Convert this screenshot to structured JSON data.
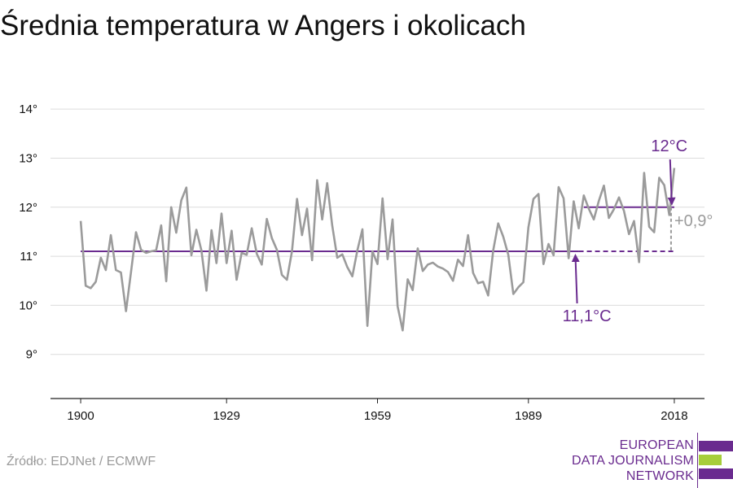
{
  "title": "Średnia temperatura w Angers i okolicach",
  "source": "Źródło: EDJNet / ECMWF",
  "logo": {
    "lines": [
      "EUROPEAN",
      "DATA JOURNALISM",
      "NETWORK"
    ],
    "colors": {
      "purple": "#6a2b8f",
      "green": "#a6ce39"
    }
  },
  "chart_data": {
    "type": "line",
    "x_ticks": [
      {
        "value": 1900,
        "label": "1900"
      },
      {
        "value": 1929,
        "label": "1929"
      },
      {
        "value": 1959,
        "label": "1959"
      },
      {
        "value": 1989,
        "label": "1989"
      },
      {
        "value": 2018,
        "label": "2018"
      }
    ],
    "y_ticks": [
      {
        "value": 9,
        "label": "9°"
      },
      {
        "value": 10,
        "label": "10°"
      },
      {
        "value": 11,
        "label": "11°"
      },
      {
        "value": 12,
        "label": "12°"
      },
      {
        "value": 13,
        "label": "13°"
      },
      {
        "value": 14,
        "label": "14°"
      }
    ],
    "xlim": [
      1894,
      2024
    ],
    "ylim": [
      8.1,
      14.4
    ],
    "grid": true,
    "series": [
      {
        "color": "#9b9b9b",
        "x": [
          1900,
          1901,
          1902,
          1903,
          1904,
          1905,
          1906,
          1907,
          1908,
          1909,
          1910,
          1911,
          1912,
          1913,
          1914,
          1915,
          1916,
          1917,
          1918,
          1919,
          1920,
          1921,
          1922,
          1923,
          1924,
          1925,
          1926,
          1927,
          1928,
          1929,
          1930,
          1931,
          1932,
          1933,
          1934,
          1935,
          1936,
          1937,
          1938,
          1939,
          1940,
          1941,
          1942,
          1943,
          1944,
          1945,
          1946,
          1947,
          1948,
          1949,
          1950,
          1951,
          1952,
          1953,
          1954,
          1955,
          1956,
          1957,
          1958,
          1959,
          1960,
          1961,
          1962,
          1963,
          1964,
          1965,
          1966,
          1967,
          1968,
          1969,
          1970,
          1971,
          1972,
          1973,
          1974,
          1975,
          1976,
          1977,
          1978,
          1979,
          1980,
          1981,
          1982,
          1983,
          1984,
          1985,
          1986,
          1987,
          1988,
          1989,
          1990,
          1991,
          1992,
          1993,
          1994,
          1995,
          1996,
          1997,
          1998,
          1999,
          2000,
          2001,
          2002,
          2003,
          2004,
          2005,
          2006,
          2007,
          2008,
          2009,
          2010,
          2011,
          2012,
          2013,
          2014,
          2015,
          2016,
          2017,
          2018
        ],
        "values": [
          11.72,
          10.4,
          10.35,
          10.48,
          10.97,
          10.72,
          11.43,
          10.72,
          10.67,
          9.88,
          10.67,
          11.49,
          11.13,
          11.07,
          11.1,
          11.12,
          11.63,
          10.49,
          12.0,
          11.48,
          12.14,
          12.4,
          11.02,
          11.54,
          11.12,
          10.3,
          11.53,
          10.86,
          11.87,
          10.86,
          11.52,
          10.52,
          11.07,
          11.03,
          11.57,
          11.05,
          10.83,
          11.76,
          11.37,
          11.13,
          10.62,
          10.52,
          11.1,
          12.17,
          11.43,
          11.97,
          10.92,
          12.55,
          11.75,
          12.49,
          11.63,
          10.97,
          11.04,
          10.78,
          10.59,
          11.12,
          11.55,
          9.58,
          11.1,
          10.84,
          12.18,
          10.94,
          11.75,
          9.98,
          9.49,
          10.53,
          10.31,
          11.16,
          10.7,
          10.83,
          10.87,
          10.79,
          10.75,
          10.68,
          10.5,
          10.93,
          10.8,
          11.43,
          10.66,
          10.45,
          10.48,
          10.2,
          11.12,
          11.67,
          11.4,
          11.03,
          10.23,
          10.37,
          10.47,
          11.59,
          12.17,
          12.27,
          10.84,
          11.25,
          11.02,
          12.41,
          12.18,
          10.96,
          12.12,
          11.57,
          12.24,
          11.97,
          11.75,
          12.13,
          12.44,
          11.78,
          11.96,
          12.2,
          11.92,
          11.45,
          11.72,
          10.88,
          12.7,
          11.6,
          11.49,
          12.6,
          12.45,
          11.84,
          12.8
        ]
      }
    ],
    "reference_lines": [
      {
        "value": 11.1,
        "label": "11,1°C",
        "from": 1900,
        "to": 1999,
        "dashed_to": 2018,
        "color": "#6a2b8f"
      },
      {
        "value": 12.0,
        "label": "12°C",
        "from": 2000,
        "to": 2018,
        "color": "#6a2b8f"
      }
    ],
    "difference": {
      "label": "+0,9°",
      "color": "#9b9b9b"
    }
  }
}
